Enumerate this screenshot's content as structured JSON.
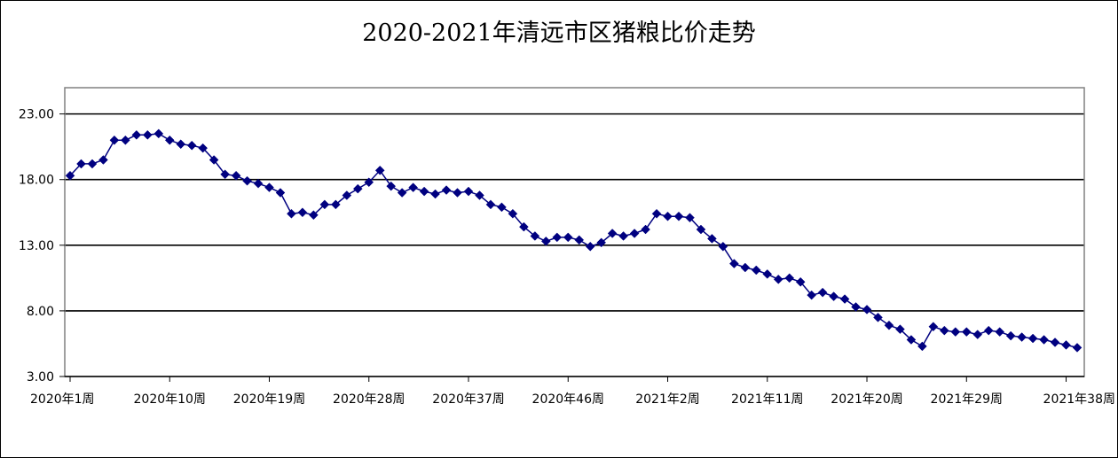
{
  "chart_data": {
    "type": "line",
    "title": "2020-2021年清远市区猪粮比价走势",
    "xlabel": "",
    "ylabel": "",
    "ylim": [
      3,
      25
    ],
    "yticks": [
      "3.00",
      "8.00",
      "13.00",
      "18.00",
      "23.00"
    ],
    "grid": true,
    "legend": "none",
    "x_tick_labels": [
      "2020年1周",
      "2020年10周",
      "2020年19周",
      "2020年28周",
      "2020年37周",
      "2020年46周",
      "2021年2周",
      "2021年11周",
      "2021年20周",
      "2021年29周",
      "2021年38周"
    ],
    "colors": {
      "series": "#000080",
      "grid": "#000000",
      "plot_border": "#808080"
    },
    "series": [
      {
        "marker": "diamond",
        "values": [
          18.3,
          19.2,
          19.2,
          19.5,
          21.0,
          21.0,
          21.4,
          21.4,
          21.5,
          21.0,
          20.7,
          20.6,
          20.4,
          19.5,
          18.4,
          18.3,
          17.9,
          17.7,
          17.4,
          17.0,
          15.4,
          15.5,
          15.3,
          16.1,
          16.1,
          16.8,
          17.3,
          17.8,
          18.7,
          17.5,
          17.0,
          17.4,
          17.1,
          16.9,
          17.2,
          17.0,
          17.1,
          16.8,
          16.1,
          15.9,
          15.4,
          14.4,
          13.7,
          13.3,
          13.6,
          13.6,
          13.4,
          12.9,
          13.2,
          13.9,
          13.7,
          13.9,
          14.2,
          15.4,
          15.2,
          15.2,
          15.1,
          14.2,
          13.5,
          12.9,
          11.6,
          11.3,
          11.1,
          10.8,
          10.4,
          10.5,
          10.2,
          9.2,
          9.4,
          9.1,
          8.9,
          8.3,
          8.1,
          7.5,
          6.9,
          6.6,
          5.8,
          5.3,
          6.8,
          6.5,
          6.4,
          6.4,
          6.2,
          6.5,
          6.4,
          6.1,
          6.0,
          5.9,
          5.8,
          5.6,
          5.4,
          5.2
        ]
      }
    ]
  }
}
